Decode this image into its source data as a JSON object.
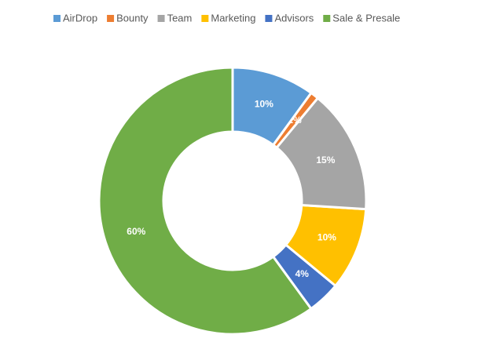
{
  "chart_data": {
    "type": "donut",
    "series": [
      {
        "name": "AirDrop",
        "color": "#5b9bd5",
        "value": 10,
        "value_label": "10%"
      },
      {
        "name": "Bounty",
        "color": "#ed7d31",
        "value": 1,
        "value_label": "1%"
      },
      {
        "name": "Team",
        "color": "#a5a5a5",
        "value": 15,
        "value_label": "15%"
      },
      {
        "name": "Marketing",
        "color": "#ffc000",
        "value": 10,
        "value_label": "10%"
      },
      {
        "name": "Advisors",
        "color": "#4472c4",
        "value": 4,
        "value_label": "4%"
      },
      {
        "name": "Sale & Presale",
        "color": "#70ad47",
        "value": 60,
        "value_label": "60%"
      }
    ],
    "legend": "top"
  }
}
